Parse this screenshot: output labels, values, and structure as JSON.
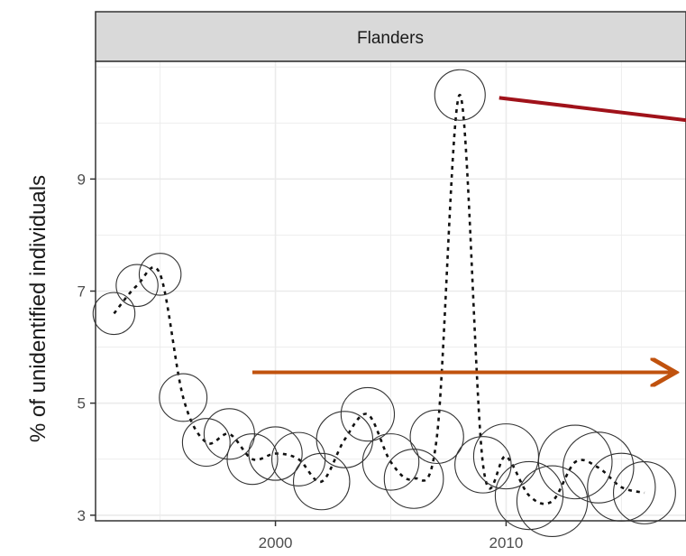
{
  "chart_data": {
    "type": "scatter",
    "facet_label": "Flanders",
    "ylabel": "% of unidentified individuals",
    "xlabel": "",
    "xlim": [
      1992.2,
      2017.8
    ],
    "ylim": [
      2.9,
      11.1
    ],
    "x_ticks": [
      2000,
      2010
    ],
    "x_tick_labels": [
      "2000",
      "2010"
    ],
    "y_ticks": [
      3,
      5,
      7,
      9
    ],
    "y_tick_labels": [
      "3",
      "5",
      "7",
      "9"
    ],
    "grid": true,
    "points": [
      {
        "x": 1993,
        "y": 6.6,
        "size": 0.35
      },
      {
        "x": 1994,
        "y": 7.1,
        "size": 0.35
      },
      {
        "x": 1995,
        "y": 7.3,
        "size": 0.35
      },
      {
        "x": 1996,
        "y": 5.1,
        "size": 0.45
      },
      {
        "x": 1997,
        "y": 4.3,
        "size": 0.45
      },
      {
        "x": 1998,
        "y": 4.45,
        "size": 0.5
      },
      {
        "x": 1999,
        "y": 4.0,
        "size": 0.5
      },
      {
        "x": 2000,
        "y": 4.1,
        "size": 0.55
      },
      {
        "x": 2001,
        "y": 4.0,
        "size": 0.55
      },
      {
        "x": 2002,
        "y": 3.6,
        "size": 0.6
      },
      {
        "x": 2003,
        "y": 4.35,
        "size": 0.6
      },
      {
        "x": 2004,
        "y": 4.8,
        "size": 0.55
      },
      {
        "x": 2005,
        "y": 3.95,
        "size": 0.6
      },
      {
        "x": 2006,
        "y": 3.65,
        "size": 0.65
      },
      {
        "x": 2007,
        "y": 4.4,
        "size": 0.55
      },
      {
        "x": 2008,
        "y": 10.5,
        "size": 0.5
      },
      {
        "x": 2009,
        "y": 3.9,
        "size": 0.6
      },
      {
        "x": 2010,
        "y": 4.05,
        "size": 0.75
      },
      {
        "x": 2011,
        "y": 3.35,
        "size": 0.8
      },
      {
        "x": 2012,
        "y": 3.25,
        "size": 0.85
      },
      {
        "x": 2013,
        "y": 3.95,
        "size": 0.9
      },
      {
        "x": 2014,
        "y": 3.85,
        "size": 0.85
      },
      {
        "x": 2015,
        "y": 3.5,
        "size": 0.8
      },
      {
        "x": 2016,
        "y": 3.4,
        "size": 0.7
      }
    ],
    "annotations": [
      {
        "kind": "line",
        "color": "#a0121a",
        "from": {
          "x": 2009.7,
          "y": 10.45
        },
        "to": {
          "x": 2017.8,
          "y": 10.05
        }
      },
      {
        "kind": "arrow",
        "color": "#c0520e",
        "from": {
          "x": 1999,
          "y": 5.55
        },
        "to": {
          "x": 2017.2,
          "y": 5.55
        }
      }
    ],
    "colors": {
      "strip_bg": "#d9d9d9",
      "grid": "#ebebeb",
      "points": "#333333",
      "trend": "#111111"
    }
  }
}
